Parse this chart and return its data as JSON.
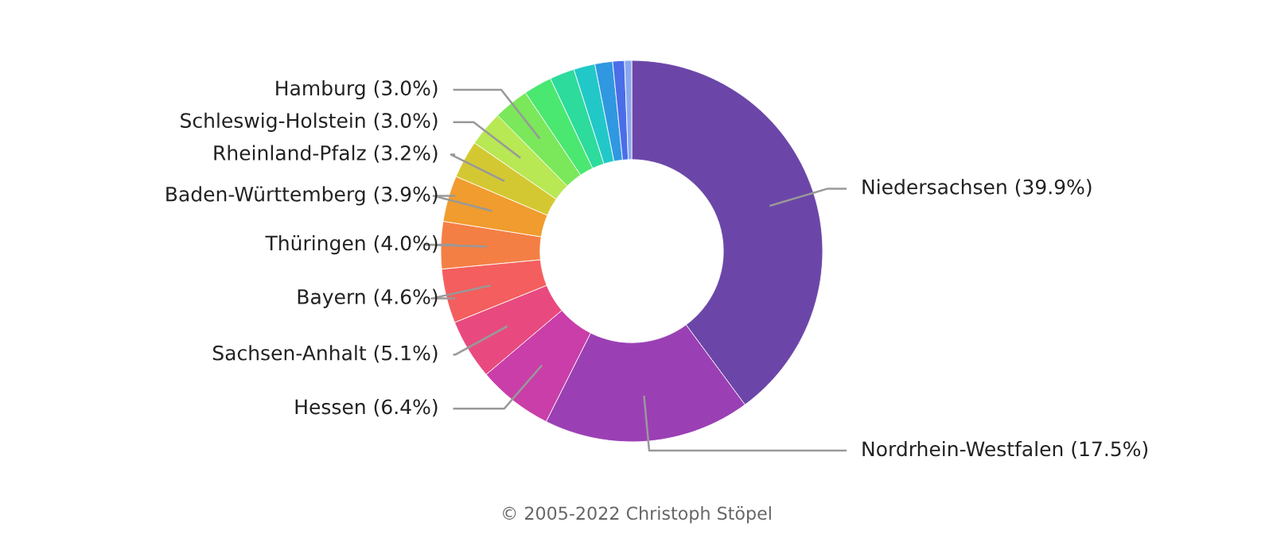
{
  "chart_data": {
    "type": "donut",
    "categories": [
      "Niedersachsen",
      "Nordrhein-Westfalen",
      "Hessen",
      "Sachsen-Anhalt",
      "Bayern",
      "Thüringen",
      "Baden-Württemberg",
      "Rheinland-Pfalz",
      "Schleswig-Holstein",
      "Hamburg",
      null,
      null,
      null,
      null,
      null,
      null
    ],
    "values": [
      39.9,
      17.5,
      6.4,
      5.1,
      4.6,
      4.0,
      3.9,
      3.2,
      3.0,
      3.0,
      2.4,
      2.1,
      1.8,
      1.5,
      1.0,
      0.6
    ],
    "value_labels": [
      "(39.9%)",
      "(17.5%)",
      "(6.4%)",
      "(5.1%)",
      "(4.6%)",
      "(4.0%)",
      "(3.9%)",
      "(3.2%)",
      "(3.0%)",
      "(3.0%)",
      null,
      null,
      null,
      null,
      null,
      null
    ],
    "colors": [
      "#6b46a8",
      "#9b3fb5",
      "#c93ea8",
      "#e84a7f",
      "#f45e5e",
      "#f47f45",
      "#f09c2e",
      "#d4c832",
      "#b8e854",
      "#7ae85a",
      "#4ae870",
      "#2ddb9c",
      "#22c8c8",
      "#3098e0",
      "#4a6ee8",
      "#8aa8f0"
    ],
    "annotations": [
      "© 2005-2022 Christoph Stöpel"
    ]
  }
}
